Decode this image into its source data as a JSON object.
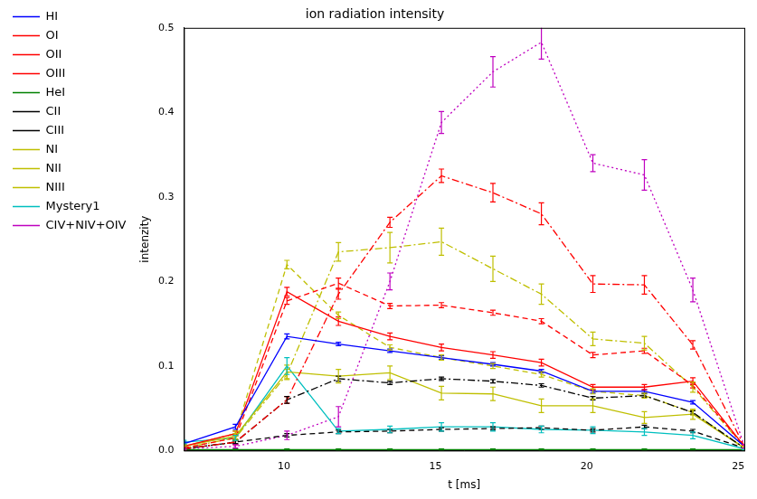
{
  "chart_data": {
    "type": "line",
    "title": "ion radiation intensity",
    "x_label": "t [ms]",
    "y_label": "intenzity",
    "x": [
      6.7,
      8.4,
      10.1,
      11.8,
      13.5,
      15.2,
      16.9,
      18.5,
      20.2,
      21.9,
      23.5,
      25.2
    ],
    "xlim": [
      6.7,
      25.2
    ],
    "xticks": [
      10,
      15,
      20,
      25
    ],
    "ylim": [
      0,
      0.5
    ],
    "yticks": [
      {
        "value": 0,
        "label": "0.0"
      },
      0.1,
      0.2,
      0.3,
      0.4,
      0.5
    ],
    "grid": false,
    "legend": "left",
    "series": [
      {
        "name": "HI",
        "color": "#0000ff",
        "line_style": "solid",
        "values": [
          0.008,
          0.028,
          0.135,
          0.126,
          0.118,
          0.11,
          0.102,
          0.094,
          0.07,
          0.07,
          0.057,
          0.005
        ],
        "errors": [
          0.002,
          0.003,
          0.003,
          0.002,
          0.002,
          0.002,
          0.002,
          0.002,
          0.002,
          0.002,
          0.002,
          0.001
        ]
      },
      {
        "name": "OI",
        "color": "#ff0000",
        "line_style": "solid",
        "values": [
          0.005,
          0.02,
          0.188,
          0.153,
          0.135,
          0.122,
          0.113,
          0.104,
          0.075,
          0.075,
          0.082,
          0.005
        ],
        "errors": [
          0.002,
          0.003,
          0.005,
          0.005,
          0.004,
          0.004,
          0.004,
          0.004,
          0.003,
          0.003,
          0.004,
          0.001
        ]
      },
      {
        "name": "OII",
        "color": "#ff0000",
        "line_style": "dashed",
        "values": [
          0.003,
          0.015,
          0.177,
          0.198,
          0.171,
          0.172,
          0.163,
          0.153,
          0.113,
          0.118,
          0.077,
          0.005
        ],
        "errors": [
          0.002,
          0.003,
          0.004,
          0.006,
          0.003,
          0.003,
          0.003,
          0.003,
          0.003,
          0.003,
          0.003,
          0.001
        ]
      },
      {
        "name": "OIII",
        "color": "#ff0000",
        "line_style": "dashdot",
        "values": [
          0.002,
          0.01,
          0.06,
          0.185,
          0.27,
          0.325,
          0.305,
          0.28,
          0.197,
          0.196,
          0.125,
          0.005
        ],
        "errors": [
          0.002,
          0.003,
          0.004,
          0.006,
          0.006,
          0.008,
          0.011,
          0.013,
          0.01,
          0.011,
          0.005,
          0.001
        ]
      },
      {
        "name": "HeI",
        "color": "#008000",
        "line_style": "solid",
        "values": [
          0.001,
          0.001,
          0.001,
          0.001,
          0.001,
          0.001,
          0.001,
          0.001,
          0.001,
          0.001,
          0.001,
          0.001
        ],
        "errors": [
          0.001,
          0.001,
          0.001,
          0.001,
          0.001,
          0.001,
          0.001,
          0.001,
          0.001,
          0.001,
          0.001,
          0.001
        ]
      },
      {
        "name": "CII",
        "color": "#000000",
        "line_style": "dashed",
        "values": [
          0.002,
          0.01,
          0.018,
          0.022,
          0.023,
          0.025,
          0.026,
          0.027,
          0.024,
          0.028,
          0.023,
          0.003
        ],
        "errors": [
          0.001,
          0.002,
          0.002,
          0.002,
          0.002,
          0.002,
          0.002,
          0.002,
          0.002,
          0.002,
          0.002,
          0.001
        ]
      },
      {
        "name": "CIII",
        "color": "#000000",
        "line_style": "dashdot",
        "values": [
          0.002,
          0.01,
          0.06,
          0.085,
          0.08,
          0.085,
          0.082,
          0.077,
          0.062,
          0.065,
          0.045,
          0.003
        ],
        "errors": [
          0.001,
          0.002,
          0.004,
          0.003,
          0.002,
          0.002,
          0.002,
          0.002,
          0.002,
          0.002,
          0.002,
          0.001
        ]
      },
      {
        "name": "NI",
        "color": "#bfbf00",
        "line_style": "solid",
        "values": [
          0.005,
          0.017,
          0.093,
          0.088,
          0.092,
          0.068,
          0.067,
          0.053,
          0.053,
          0.039,
          0.043,
          0.003
        ],
        "errors": [
          0.002,
          0.003,
          0.008,
          0.008,
          0.008,
          0.008,
          0.008,
          0.008,
          0.008,
          0.007,
          0.006,
          0.001
        ]
      },
      {
        "name": "NII",
        "color": "#bfbf00",
        "line_style": "dashed",
        "values": [
          0.005,
          0.02,
          0.22,
          0.16,
          0.122,
          0.11,
          0.1,
          0.09,
          0.07,
          0.065,
          0.045,
          0.003
        ],
        "errors": [
          0.002,
          0.003,
          0.005,
          0.004,
          0.003,
          0.003,
          0.003,
          0.003,
          0.003,
          0.003,
          0.003,
          0.001
        ]
      },
      {
        "name": "NIII",
        "color": "#bfbf00",
        "line_style": "dashdot",
        "values": [
          0.003,
          0.015,
          0.09,
          0.235,
          0.24,
          0.247,
          0.215,
          0.185,
          0.132,
          0.127,
          0.075,
          0.004
        ],
        "errors": [
          0.002,
          0.003,
          0.006,
          0.011,
          0.018,
          0.016,
          0.015,
          0.012,
          0.008,
          0.008,
          0.006,
          0.001
        ]
      },
      {
        "name": "Mystery1",
        "color": "#00bfbf",
        "line_style": "solid",
        "values": [
          0.01,
          0.015,
          0.1,
          0.023,
          0.025,
          0.028,
          0.028,
          0.025,
          0.024,
          0.022,
          0.018,
          0.002
        ],
        "errors": [
          0.002,
          0.003,
          0.01,
          0.003,
          0.004,
          0.005,
          0.005,
          0.004,
          0.004,
          0.004,
          0.004,
          0.001
        ]
      },
      {
        "name": "CIV+NIV+OIV",
        "color": "#bf00bf",
        "line_style": "dotted",
        "values": [
          0.002,
          0.005,
          0.018,
          0.04,
          0.2,
          0.388,
          0.448,
          0.483,
          0.34,
          0.326,
          0.19,
          0.005
        ],
        "errors": [
          0.001,
          0.002,
          0.005,
          0.012,
          0.01,
          0.013,
          0.018,
          0.02,
          0.01,
          0.018,
          0.014,
          0.002
        ]
      }
    ]
  }
}
